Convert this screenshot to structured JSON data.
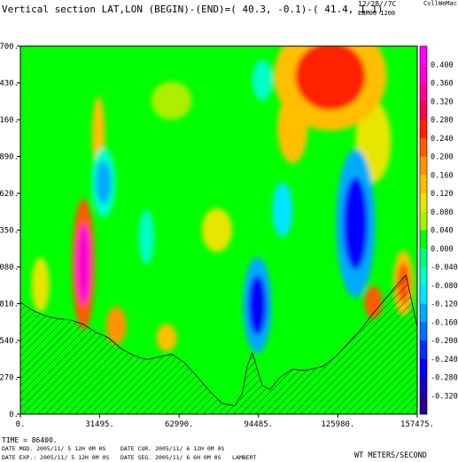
{
  "header": {
    "title": "Vertical section LAT,LON (BEGIN)-(END)=( 40.3, -0.1)-( 41.4,  1.1)",
    "datetime": "12/28//7C",
    "creator": "CvllWeMac",
    "run_id": "EBR06 1200"
  },
  "footer": {
    "time_line": "TIME =    86400.",
    "date_mod": "DATE MOD. 2005/11/ 5  12H 0M 0S",
    "date_cur": "DATE CUR. 2005/11/ 6  12H 0M 0S",
    "date_exp": "DATE EXP.: 2005/11/ 5  12H 0M 0S",
    "date_seg": "DATE SEG. 2005/11/ 6   6H 0M 0S",
    "projection": "LAMBERT",
    "variable_units": "WT METERS/SECOND"
  },
  "chart_data": {
    "type": "heatmap",
    "title": "Vertical section LAT,LON (BEGIN)-(END)=( 40.3, -0.1)-( 41.4,  1.1)",
    "xlabel": "",
    "ylabel": "",
    "x_ticks": [
      "0.",
      "31495.",
      "62990.",
      "94485.",
      "125980.",
      "157475."
    ],
    "y_ticks": [
      "0.",
      "270.",
      "540.",
      "810.",
      "1080.",
      "1350.",
      "1620.",
      "1890.",
      "2160.",
      "2430.",
      "2700."
    ],
    "xlim": [
      0,
      157475
    ],
    "ylim": [
      0,
      2700
    ],
    "colorbar": {
      "labels": [
        "0.400",
        "0.360",
        "0.320",
        "0.280",
        "0.240",
        "0.200",
        "0.160",
        "0.120",
        "0.080",
        "0.040",
        "0.000",
        "-0.040",
        "-0.080",
        "-0.120",
        "-0.160",
        "-0.200",
        "-0.240",
        "-0.280",
        "-0.320"
      ],
      "colors": [
        "#ff00ff",
        "#ff00d0",
        "#ff0090",
        "#ff0050",
        "#ff2000",
        "#ff5a00",
        "#ff9400",
        "#ffbf00",
        "#e6e600",
        "#aaf000",
        "#00ff00",
        "#00ff80",
        "#00ffc8",
        "#00e6ff",
        "#00aaff",
        "#0070ff",
        "#0030ff",
        "#0000ff",
        "#1a00c0",
        "#2a0090"
      ]
    },
    "terrain": [
      [
        0,
        820
      ],
      [
        5000,
        760
      ],
      [
        10000,
        720
      ],
      [
        15000,
        700
      ],
      [
        20000,
        690
      ],
      [
        25000,
        660
      ],
      [
        30000,
        600
      ],
      [
        35000,
        560
      ],
      [
        40000,
        480
      ],
      [
        45000,
        430
      ],
      [
        50000,
        400
      ],
      [
        55000,
        420
      ],
      [
        60000,
        440
      ],
      [
        65000,
        380
      ],
      [
        70000,
        280
      ],
      [
        75000,
        170
      ],
      [
        80000,
        80
      ],
      [
        85000,
        60
      ],
      [
        88000,
        150
      ],
      [
        90000,
        350
      ],
      [
        92000,
        450
      ],
      [
        94000,
        330
      ],
      [
        96000,
        210
      ],
      [
        99000,
        180
      ],
      [
        103000,
        270
      ],
      [
        108000,
        330
      ],
      [
        113000,
        320
      ],
      [
        120000,
        350
      ],
      [
        125000,
        420
      ],
      [
        130000,
        520
      ],
      [
        135000,
        620
      ],
      [
        140000,
        740
      ],
      [
        145000,
        850
      ],
      [
        150000,
        960
      ],
      [
        153000,
        1020
      ],
      [
        157475,
        640
      ]
    ],
    "features": [
      {
        "label": "upper orange-red core",
        "x": 123000,
        "y": 2480,
        "value": 0.26
      },
      {
        "label": "left magenta updraft",
        "x": 25000,
        "y": 1100,
        "value": 0.38
      },
      {
        "label": "lower blue downdraft",
        "x": 94000,
        "y": 800,
        "value": -0.28
      },
      {
        "label": "right blue downdraft",
        "x": 133000,
        "y": 1400,
        "value": -0.26
      },
      {
        "label": "mid-left cyan cell",
        "x": 33000,
        "y": 1700,
        "value": -0.14
      },
      {
        "label": "right red low cell",
        "x": 152000,
        "y": 960,
        "value": 0.22
      }
    ]
  }
}
